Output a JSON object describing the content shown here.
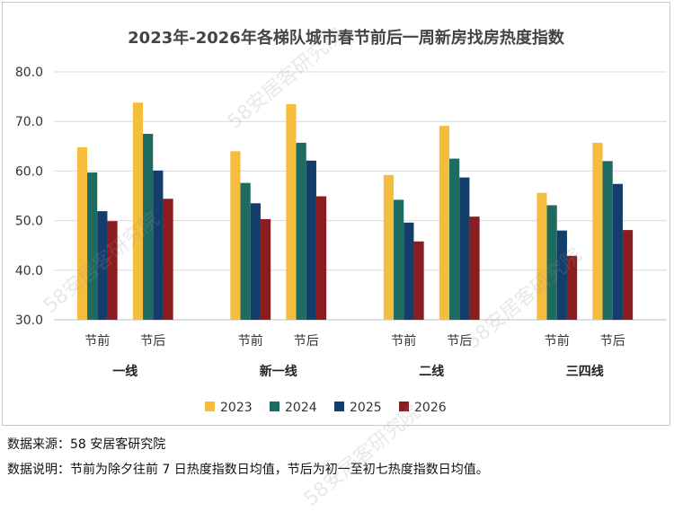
{
  "watermark": "58安居客研究院",
  "footnotes": {
    "source": "数据来源：58 安居客研究院",
    "description": "数据说明：节前为除夕往前 7 日热度指数日均值，节后为初一至初七热度指数日均值。"
  },
  "chart_data": {
    "type": "bar",
    "title": "2023年-2026年各梯队城市春节前后一周新房找房热度指数",
    "ylim": [
      30,
      80
    ],
    "yticks": [
      "30.0",
      "40.0",
      "50.0",
      "60.0",
      "70.0",
      "80.0"
    ],
    "grid": true,
    "legend_position": "bottom",
    "groups": [
      {
        "name": "一线",
        "subcategories": [
          "节前",
          "节后"
        ]
      },
      {
        "name": "新一线",
        "subcategories": [
          "节前",
          "节后"
        ]
      },
      {
        "name": "二线",
        "subcategories": [
          "节前",
          "节后"
        ]
      },
      {
        "name": "三四线",
        "subcategories": [
          "节前",
          "节后"
        ]
      }
    ],
    "series": [
      {
        "name": "2023",
        "color": "#f5bd3e",
        "values": [
          64.8,
          73.8,
          64.0,
          73.5,
          59.2,
          69.1,
          55.6,
          65.7
        ]
      },
      {
        "name": "2024",
        "color": "#1e6b62",
        "values": [
          59.7,
          67.5,
          57.6,
          65.7,
          54.2,
          62.5,
          53.1,
          62.0
        ]
      },
      {
        "name": "2025",
        "color": "#133e6b",
        "values": [
          51.9,
          60.1,
          53.5,
          62.1,
          49.6,
          58.7,
          48.0,
          57.4
        ]
      },
      {
        "name": "2026",
        "color": "#8b1c1f",
        "values": [
          49.9,
          54.4,
          50.3,
          54.9,
          45.8,
          50.8,
          42.9,
          48.1
        ]
      }
    ]
  }
}
